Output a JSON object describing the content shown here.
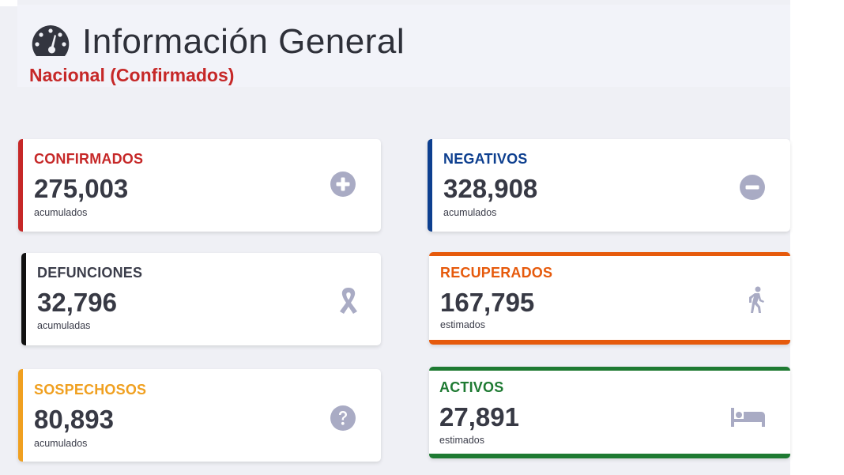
{
  "header": {
    "title": "Información General",
    "subtitle": "Nacional (Confirmados)",
    "icon": "gauge-icon"
  },
  "cards": {
    "confirmados": {
      "label": "CONFIRMADOS",
      "value": "275,003",
      "sub": "acumulados",
      "color": "#c62828",
      "icon": "plus-circle-icon"
    },
    "negativos": {
      "label": "NEGATIVOS",
      "value": "328,908",
      "sub": "acumulados",
      "color": "#0d3f8f",
      "icon": "minus-circle-icon"
    },
    "defunciones": {
      "label": "DEFUNCIONES",
      "value": "32,796",
      "sub": "acumuladas",
      "color": "#111111",
      "icon": "ribbon-icon"
    },
    "recuperados": {
      "label": "RECUPERADOS",
      "value": "167,795",
      "sub": "estimados",
      "color": "#e65a0c",
      "icon": "walking-person-icon"
    },
    "sospechosos": {
      "label": "SOSPECHOSOS",
      "value": "80,893",
      "sub": "acumulados",
      "color": "#f0a020",
      "icon": "question-circle-icon"
    },
    "activos": {
      "label": "ACTIVOS",
      "value": "27,891",
      "sub": "estimados",
      "color": "#1e7a32",
      "icon": "bed-icon"
    }
  },
  "icon_color": "#a9abc4"
}
